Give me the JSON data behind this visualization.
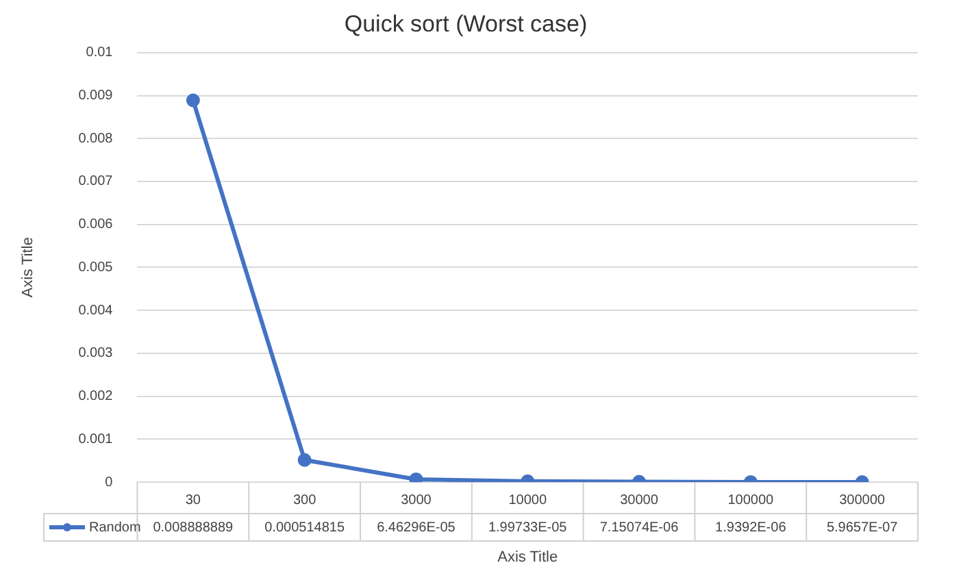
{
  "chart_data": {
    "type": "line",
    "title": "Quick sort (Worst case)",
    "xlabel": "Axis Title",
    "ylabel": "Axis Title",
    "categories": [
      "30",
      "300",
      "3000",
      "10000",
      "30000",
      "100000",
      "300000"
    ],
    "series": [
      {
        "name": "Random",
        "color": "#4472c4",
        "values": [
          0.008888889,
          0.000514815,
          6.46296e-05,
          1.99733e-05,
          7.15074e-06,
          1.9392e-06,
          5.9657e-07
        ],
        "value_labels": [
          "0.008888889",
          "0.000514815",
          "6.46296E-05",
          "1.99733E-05",
          "7.15074E-06",
          "1.9392E-06",
          "5.9657E-07"
        ]
      }
    ],
    "ylim": [
      0,
      0.01
    ],
    "yticks": [
      0,
      0.001,
      0.002,
      0.003,
      0.004,
      0.005,
      0.006,
      0.007,
      0.008,
      0.009,
      0.01
    ],
    "grid": "y",
    "legend": "bottom",
    "marker": "circle",
    "line_style": "solid"
  }
}
